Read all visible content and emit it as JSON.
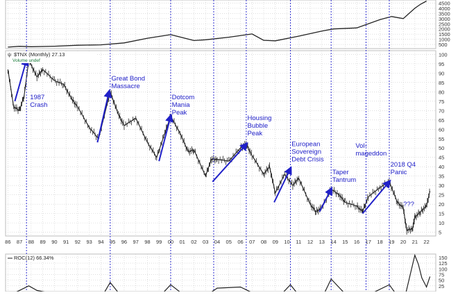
{
  "chart_data": [
    {
      "type": "line",
      "panel": "s&p-500-monthly",
      "title": "",
      "x": [
        1986,
        1987,
        1988,
        1990,
        1992,
        1994,
        1996,
        1998,
        2000,
        2002,
        2003,
        2005,
        2007,
        2008,
        2009,
        2011,
        2013,
        2014,
        2016,
        2018,
        2019,
        2020,
        2021,
        2021.5,
        2022
      ],
      "series": [
        {
          "values": [
            240,
            320,
            280,
            330,
            420,
            460,
            650,
            1100,
            1450,
            880,
            950,
            1200,
            1520,
            900,
            850,
            1300,
            1800,
            2000,
            2100,
            2900,
            3200,
            3000,
            4000,
            4400,
            4700
          ]
        }
      ],
      "yticks": [
        500,
        1000,
        1500,
        2000,
        2500,
        3000,
        3500,
        4000,
        4500
      ],
      "ylim": [
        100,
        4800
      ],
      "grid": true
    },
    {
      "type": "line",
      "panel": "tnx-monthly",
      "legend": "$TNX (Monthly) 27.13",
      "volume_note": "Volume undef",
      "x": [
        1986,
        1986.5,
        1987,
        1987.4,
        1987.8,
        1988.5,
        1989,
        1990,
        1990.8,
        1991.5,
        1992,
        1993,
        1993.8,
        1994.8,
        1995.5,
        1996,
        1997,
        1998,
        1998.8,
        1999.5,
        2000,
        2000.8,
        2001.5,
        2002,
        2003,
        2003.5,
        2004,
        2005,
        2006,
        2006.5,
        2007,
        2008,
        2008.5,
        2009,
        2009.8,
        2010.5,
        2011,
        2012,
        2012.5,
        2013,
        2013.8,
        2014.5,
        2015,
        2016,
        2016.5,
        2017,
        2018,
        2018.8,
        2019.5,
        2020,
        2020.3,
        2020.8,
        2021,
        2021.5,
        2022,
        2022.3
      ],
      "series": [
        {
          "values": [
            92,
            72,
            70,
            78,
            97,
            88,
            92,
            86,
            84,
            76,
            72,
            61,
            55,
            80,
            68,
            62,
            66,
            53,
            45,
            58,
            67,
            58,
            48,
            49,
            35,
            44,
            44,
            43,
            50,
            52,
            46,
            36,
            40,
            26,
            36,
            30,
            34,
            20,
            16,
            18,
            28,
            25,
            21,
            19,
            16,
            24,
            29,
            32,
            21,
            18,
            6,
            7,
            13,
            16,
            19,
            27
          ]
        }
      ],
      "yticks": [
        5,
        10,
        15,
        20,
        25,
        30,
        35,
        40,
        45,
        50,
        55,
        60,
        65,
        70,
        75,
        80,
        85,
        90,
        95,
        100
      ],
      "ylim": [
        3,
        102
      ],
      "arrows": [
        {
          "x0": 1986.6,
          "y0": 75,
          "x1": 1987.6,
          "y1": 97
        },
        {
          "x0": 1993.7,
          "y0": 53,
          "x1": 1994.7,
          "y1": 80
        },
        {
          "x0": 1999.0,
          "y0": 43,
          "x1": 2000.0,
          "y1": 67
        },
        {
          "x0": 2003.6,
          "y0": 32,
          "x1": 2006.5,
          "y1": 52
        },
        {
          "x0": 2008.9,
          "y0": 21,
          "x1": 2010.3,
          "y1": 39
        },
        {
          "x0": 2012.8,
          "y0": 16,
          "x1": 2013.8,
          "y1": 28
        },
        {
          "x0": 2016.5,
          "y0": 15,
          "x1": 2018.8,
          "y1": 32
        }
      ],
      "annotations": [
        {
          "lines": [
            "1987",
            "Crash"
          ],
          "x": 1987.9,
          "y": 76
        },
        {
          "lines": [
            "Great Bond",
            "Massacre"
          ],
          "x": 1994.9,
          "y": 86
        },
        {
          "lines": [
            "Dotcom",
            "Mania",
            "Peak"
          ],
          "x": 2000.1,
          "y": 76
        },
        {
          "lines": [
            "Housing",
            "Bubble",
            "Peak"
          ],
          "x": 2006.6,
          "y": 65
        },
        {
          "lines": [
            "European",
            "Sovereign",
            "Debt Crisis"
          ],
          "x": 2010.4,
          "y": 51
        },
        {
          "lines": [
            "Taper",
            "Tantrum"
          ],
          "x": 2013.9,
          "y": 36
        },
        {
          "lines": [
            "Vol-",
            "mageddon"
          ],
          "x": 2015.9,
          "y": 50
        },
        {
          "lines": [
            "2018 Q4",
            "Panic"
          ],
          "x": 2018.9,
          "y": 40
        },
        {
          "lines": [
            "???"
          ],
          "x": 2020.0,
          "y": 19
        }
      ],
      "event_lines_x": [
        1987.6,
        1994.8,
        2000.0,
        2003.7,
        2006.5,
        2010.3,
        2013.8,
        2016.8,
        2018.8
      ],
      "x_tick_labels": [
        "86",
        "87",
        "88",
        "89",
        "90",
        "91",
        "92",
        "93",
        "94",
        "95",
        "96",
        "97",
        "98",
        "99",
        "00",
        "01",
        "02",
        "03",
        "04",
        "05",
        "06",
        "07",
        "08",
        "09",
        "10",
        "11",
        "12",
        "13",
        "14",
        "15",
        "16",
        "17",
        "18",
        "19",
        "20",
        "21",
        "22"
      ],
      "colors": {
        "price": "#222222",
        "annotation": "#2020c8",
        "event_line": "#3030d0",
        "grid": "#c8c8c8"
      }
    },
    {
      "type": "line",
      "panel": "roc-12",
      "legend": "ROC(12) 66.34%",
      "x": [
        1986,
        1987,
        1987.8,
        1988.5,
        1990,
        1992,
        1994,
        1994.8,
        1995.5,
        1997,
        1999,
        2000,
        2001,
        2003,
        2004,
        2006,
        2007,
        2009,
        2010.3,
        2011,
        2013,
        2013.8,
        2015,
        2017,
        2018.8,
        2020,
        2021,
        2021.3,
        2021.6,
        2022,
        2022.3
      ],
      "series": [
        {
          "values": [
            -20,
            5,
            25,
            5,
            -10,
            -15,
            -30,
            40,
            -5,
            -10,
            -25,
            30,
            -10,
            -20,
            15,
            20,
            -5,
            -40,
            30,
            -15,
            -30,
            55,
            -10,
            -15,
            30,
            -55,
            160,
            120,
            60,
            20,
            66
          ]
        }
      ],
      "yticks": [
        25,
        50,
        75,
        100,
        125,
        150
      ],
      "ylim": [
        0,
        165
      ]
    }
  ]
}
